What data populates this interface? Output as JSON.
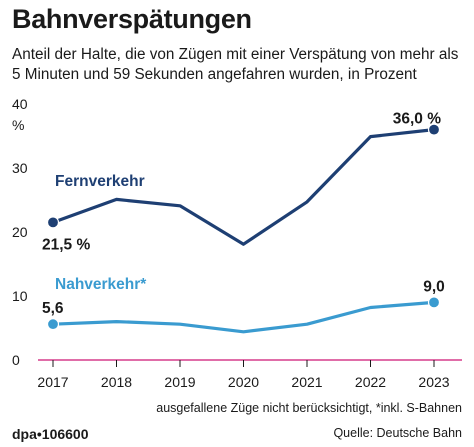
{
  "header": {
    "title": "Bahnverspätungen",
    "subtitle": "Anteil der Halte, die von Zügen mit einer Verspätung von mehr als 5 Minuten und 59 Sekunden angefahren wurden, in Prozent"
  },
  "chart_data": {
    "type": "line",
    "x": [
      "2017",
      "2018",
      "2019",
      "2020",
      "2021",
      "2022",
      "2023"
    ],
    "ylim": [
      0,
      40
    ],
    "yticks": [
      "0",
      "10",
      "20",
      "30",
      "40"
    ],
    "yunit": "%",
    "grid": false,
    "series": [
      {
        "name": "Fernverkehr",
        "color": "#1e3f73",
        "values": [
          21.5,
          25.1,
          24.1,
          18.1,
          24.7,
          34.9,
          36.0
        ],
        "data_labels": [
          {
            "index": 0,
            "text": "21,5 %"
          },
          {
            "index": 6,
            "text": "36,0 %"
          }
        ]
      },
      {
        "name": "Nahverkehr*",
        "color": "#3a9bd0",
        "values": [
          5.6,
          6.0,
          5.6,
          4.4,
          5.6,
          8.2,
          9.0
        ],
        "data_labels": [
          {
            "index": 0,
            "text": "5,6"
          },
          {
            "index": 6,
            "text": "9,0"
          }
        ]
      }
    ],
    "baseline_color": "#d63d8c"
  },
  "footer": {
    "note": "ausgefallene Züge nicht berücksichtigt, *inkl. S-Bahnen",
    "logo": "dpa•106600",
    "source": "Quelle: Deutsche Bahn"
  }
}
